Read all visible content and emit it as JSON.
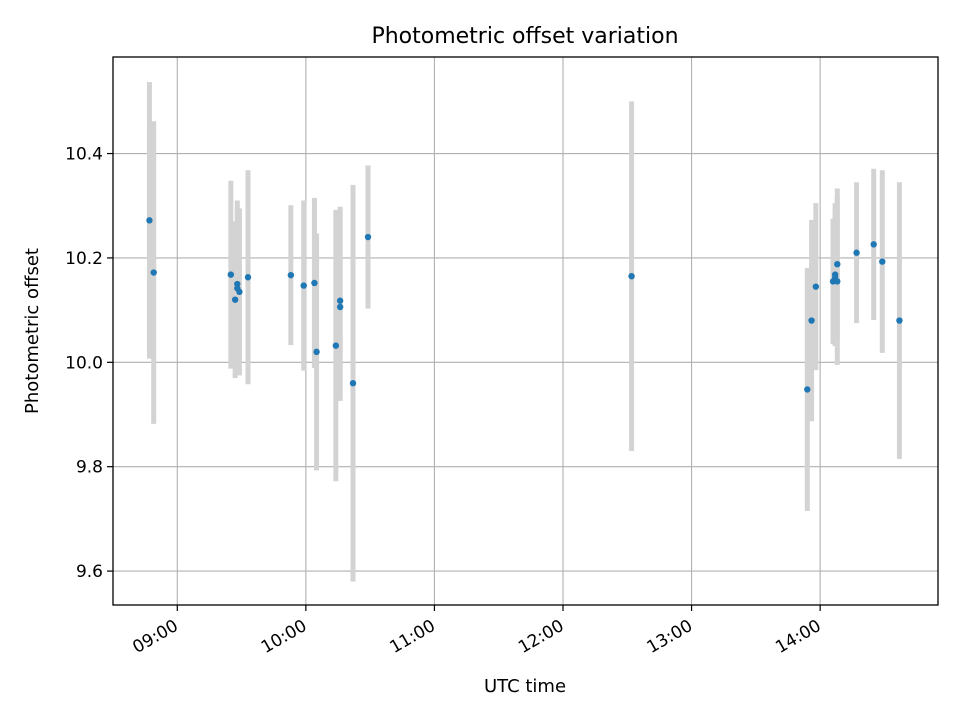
{
  "chart_data": {
    "type": "scatter",
    "title": "Photometric offset variation",
    "xlabel": "UTC time",
    "ylabel": "Photometric offset",
    "xlim": [
      "08:30",
      "14:55"
    ],
    "ylim": [
      9.535,
      10.585
    ],
    "grid": true,
    "x_ticks": [
      "09:00",
      "10:00",
      "11:00",
      "12:00",
      "13:00",
      "14:00"
    ],
    "y_ticks": [
      "9.6",
      "9.8",
      "10.0",
      "10.2",
      "10.4"
    ],
    "colors": {
      "points": "#1f77b4",
      "error_bars": "#d3d3d3",
      "grid": "#b0b0b0"
    },
    "points": [
      {
        "x": "08:47",
        "y": 10.272,
        "yerr": 0.265
      },
      {
        "x": "08:49",
        "y": 10.172,
        "yerr": 0.29
      },
      {
        "x": "09:25",
        "y": 10.168,
        "yerr": 0.18
      },
      {
        "x": "09:27",
        "y": 10.12,
        "yerr": 0.15
      },
      {
        "x": "09:28",
        "y": 10.15,
        "yerr": 0.16
      },
      {
        "x": "09:28",
        "y": 10.142,
        "yerr": 0.15
      },
      {
        "x": "09:29",
        "y": 10.135,
        "yerr": 0.16
      },
      {
        "x": "09:33",
        "y": 10.163,
        "yerr": 0.205
      },
      {
        "x": "09:53",
        "y": 10.167,
        "yerr": 0.134
      },
      {
        "x": "09:59",
        "y": 10.147,
        "yerr": 0.163
      },
      {
        "x": "10:04",
        "y": 10.152,
        "yerr": 0.163
      },
      {
        "x": "10:05",
        "y": 10.02,
        "yerr": 0.227
      },
      {
        "x": "10:14",
        "y": 10.032,
        "yerr": 0.26
      },
      {
        "x": "10:16",
        "y": 10.106,
        "yerr": 0.18
      },
      {
        "x": "10:16",
        "y": 10.118,
        "yerr": 0.18
      },
      {
        "x": "10:22",
        "y": 9.96,
        "yerr": 0.38
      },
      {
        "x": "10:29",
        "y": 10.24,
        "yerr": 0.137
      },
      {
        "x": "12:32",
        "y": 10.165,
        "yerr": 0.335
      },
      {
        "x": "13:54",
        "y": 9.948,
        "yerr": 0.233
      },
      {
        "x": "13:56",
        "y": 10.08,
        "yerr": 0.193
      },
      {
        "x": "13:58",
        "y": 10.145,
        "yerr": 0.16
      },
      {
        "x": "14:06",
        "y": 10.155,
        "yerr": 0.12
      },
      {
        "x": "14:07",
        "y": 10.168,
        "yerr": 0.137
      },
      {
        "x": "14:07",
        "y": 10.162,
        "yerr": 0.13
      },
      {
        "x": "14:08",
        "y": 10.155,
        "yerr": 0.16
      },
      {
        "x": "14:08",
        "y": 10.188,
        "yerr": 0.145
      },
      {
        "x": "14:17",
        "y": 10.21,
        "yerr": 0.135
      },
      {
        "x": "14:25",
        "y": 10.226,
        "yerr": 0.145
      },
      {
        "x": "14:29",
        "y": 10.193,
        "yerr": 0.175
      },
      {
        "x": "14:37",
        "y": 10.08,
        "yerr": 0.265
      }
    ]
  }
}
